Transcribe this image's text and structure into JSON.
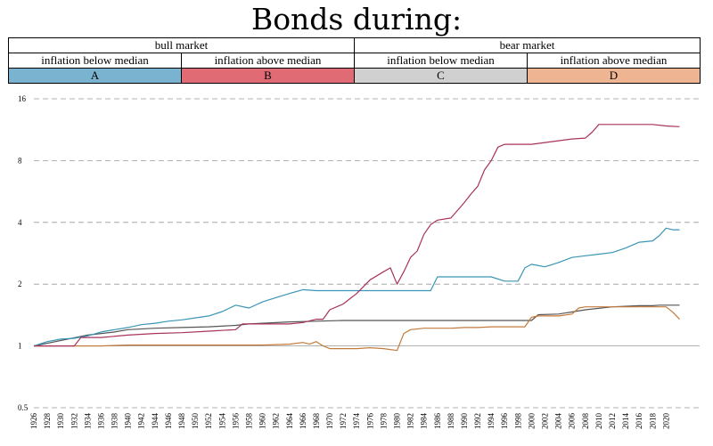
{
  "header": {
    "title": "Bonds during:",
    "group_bull": "bull market",
    "group_bear": "bear market",
    "sub_below": "inflation below median",
    "sub_above": "inflation above median",
    "label_a": "A",
    "label_b": "B",
    "label_c": "C",
    "label_d": "D"
  },
  "colors": {
    "A": "#7ab3cf",
    "B": "#e06b74",
    "C": "#d0d0d0",
    "D": "#efb592",
    "lineA": "#3a95b4",
    "lineB": "#a8325e",
    "lineC": "#555555",
    "lineD": "#c47a3c",
    "grid": "#999999"
  },
  "chart_data": {
    "type": "line",
    "title": "Bonds during:",
    "xlabel": "",
    "ylabel": "",
    "yscale": "log2",
    "ylim": [
      0.5,
      16
    ],
    "xlim": [
      1926,
      2023
    ],
    "y_ticks": [
      0.5,
      1,
      2,
      4,
      8,
      16
    ],
    "x_ticks": [
      1926,
      1928,
      1930,
      1932,
      1934,
      1936,
      1938,
      1940,
      1942,
      1944,
      1946,
      1948,
      1950,
      1952,
      1954,
      1956,
      1958,
      1960,
      1962,
      1964,
      1966,
      1968,
      1970,
      1972,
      1974,
      1976,
      1978,
      1980,
      1982,
      1984,
      1986,
      1988,
      1990,
      1992,
      1994,
      1996,
      1998,
      2000,
      2002,
      2004,
      2006,
      2008,
      2010,
      2012,
      2014,
      2016,
      2018,
      2020
    ],
    "grid": "horizontal dashed",
    "series": [
      {
        "name": "A",
        "x": [
          1926,
          1928,
          1930,
          1932,
          1934,
          1936,
          1938,
          1940,
          1942,
          1944,
          1946,
          1948,
          1950,
          1952,
          1954,
          1956,
          1958,
          1960,
          1962,
          1964,
          1966,
          1968,
          1970,
          1972,
          1974,
          1976,
          1978,
          1980,
          1982,
          1984,
          1985,
          1986,
          1988,
          1990,
          1992,
          1994,
          1996,
          1998,
          1999,
          2000,
          2002,
          2004,
          2006,
          2008,
          2010,
          2012,
          2014,
          2016,
          2018,
          2019,
          2020,
          2021,
          2022
        ],
        "y": [
          1.0,
          1.05,
          1.08,
          1.09,
          1.12,
          1.17,
          1.2,
          1.23,
          1.27,
          1.29,
          1.32,
          1.34,
          1.37,
          1.4,
          1.47,
          1.58,
          1.53,
          1.64,
          1.72,
          1.8,
          1.88,
          1.86,
          1.86,
          1.86,
          1.86,
          1.86,
          1.86,
          1.86,
          1.86,
          1.86,
          1.86,
          2.17,
          2.17,
          2.17,
          2.17,
          2.17,
          2.07,
          2.07,
          2.4,
          2.5,
          2.43,
          2.55,
          2.7,
          2.75,
          2.8,
          2.85,
          3.0,
          3.2,
          3.25,
          3.45,
          3.75,
          3.68,
          3.68
        ]
      },
      {
        "name": "B",
        "x": [
          1926,
          1932,
          1933,
          1936,
          1940,
          1944,
          1948,
          1952,
          1956,
          1957,
          1960,
          1962,
          1964,
          1966,
          1968,
          1969,
          1970,
          1972,
          1973,
          1974,
          1976,
          1978,
          1979,
          1980,
          1981,
          1982,
          1983,
          1984,
          1985,
          1986,
          1988,
          1990,
          1991,
          1992,
          1993,
          1994,
          1995,
          1996,
          1998,
          2000,
          2002,
          2004,
          2006,
          2008,
          2009,
          2010,
          2012,
          2014,
          2016,
          2018,
          2020,
          2022
        ],
        "y": [
          1.0,
          1.0,
          1.1,
          1.1,
          1.13,
          1.15,
          1.16,
          1.18,
          1.2,
          1.28,
          1.28,
          1.28,
          1.28,
          1.3,
          1.35,
          1.35,
          1.5,
          1.6,
          1.7,
          1.8,
          2.1,
          2.3,
          2.4,
          2.0,
          2.3,
          2.7,
          2.9,
          3.5,
          3.9,
          4.1,
          4.2,
          5.0,
          5.5,
          6.0,
          7.2,
          8.0,
          9.3,
          9.6,
          9.6,
          9.6,
          9.8,
          10.0,
          10.2,
          10.3,
          11.0,
          12.0,
          12.0,
          12.0,
          12.0,
          12.0,
          11.8,
          11.7
        ]
      },
      {
        "name": "C",
        "x": [
          1926,
          1934,
          1938,
          1940,
          1944,
          1948,
          1952,
          1956,
          1958,
          1960,
          1964,
          1968,
          1972,
          1976,
          1980,
          1984,
          1988,
          1992,
          1996,
          2000,
          2001,
          2004,
          2008,
          2012,
          2016,
          2018,
          2019,
          2020,
          2022
        ],
        "y": [
          1.0,
          1.13,
          1.17,
          1.2,
          1.22,
          1.23,
          1.24,
          1.26,
          1.28,
          1.29,
          1.31,
          1.32,
          1.33,
          1.33,
          1.33,
          1.33,
          1.33,
          1.33,
          1.33,
          1.33,
          1.42,
          1.43,
          1.5,
          1.55,
          1.57,
          1.57,
          1.58,
          1.58,
          1.58
        ]
      },
      {
        "name": "D",
        "x": [
          1926,
          1930,
          1934,
          1936,
          1940,
          1944,
          1948,
          1952,
          1956,
          1960,
          1964,
          1966,
          1967,
          1968,
          1969,
          1970,
          1972,
          1974,
          1976,
          1978,
          1980,
          1981,
          1982,
          1984,
          1986,
          1988,
          1990,
          1992,
          1994,
          1996,
          1998,
          1999,
          2000,
          2001,
          2002,
          2004,
          2006,
          2007,
          2008,
          2010,
          2012,
          2016,
          2018,
          2020,
          2021,
          2022
        ],
        "y": [
          1.0,
          1.0,
          1.0,
          1.0,
          1.01,
          1.01,
          1.01,
          1.01,
          1.01,
          1.01,
          1.02,
          1.04,
          1.02,
          1.05,
          1.0,
          0.97,
          0.97,
          0.97,
          0.98,
          0.97,
          0.95,
          1.15,
          1.2,
          1.22,
          1.22,
          1.22,
          1.23,
          1.23,
          1.24,
          1.24,
          1.24,
          1.24,
          1.38,
          1.4,
          1.4,
          1.4,
          1.43,
          1.53,
          1.55,
          1.55,
          1.55,
          1.55,
          1.55,
          1.55,
          1.46,
          1.35
        ]
      }
    ]
  }
}
